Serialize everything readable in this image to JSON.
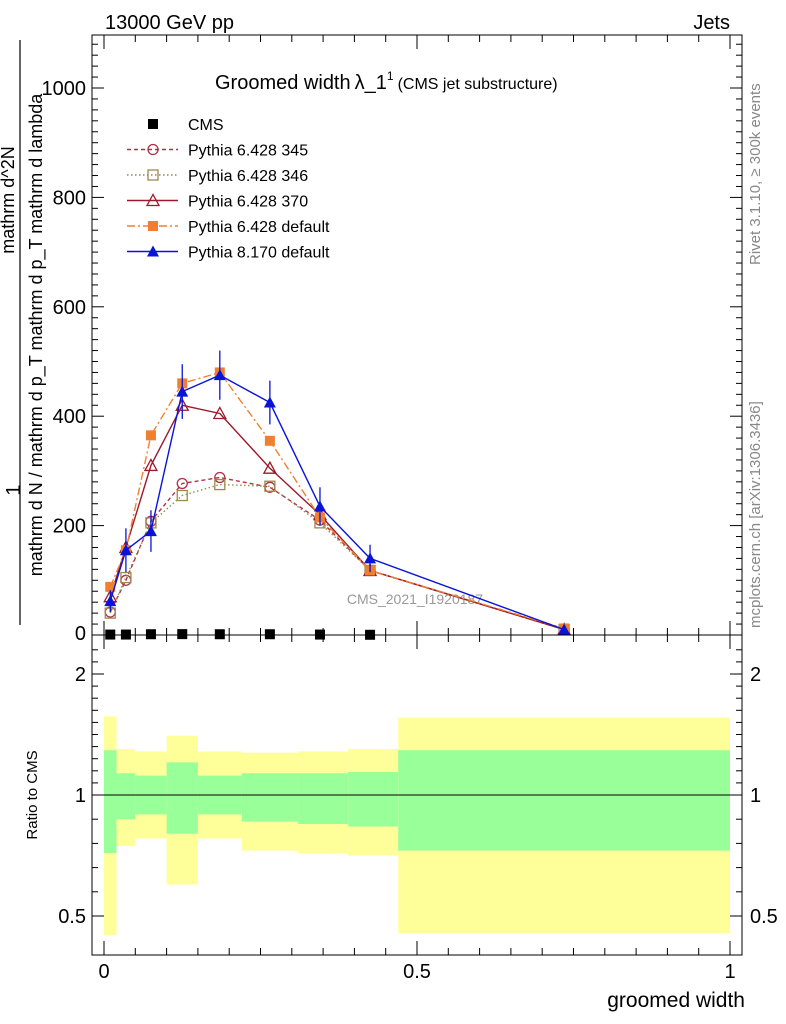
{
  "header": {
    "energy_label": "13000 GeV pp",
    "process_label": "Jets"
  },
  "side_labels": {
    "rivet": "Rivet 3.1.10, ≥ 300k events",
    "site": "mcplots.cern.ch [arXiv:1306.3436]"
  },
  "chart_data": [
    {
      "type": "line",
      "title_main": "Groomed width",
      "title_lambda": "λ_1",
      "title_sup": "1",
      "title_sub": "(CMS jet substructure)",
      "watermark": "CMS_2021_I1920187",
      "ylabel_num": "1",
      "ylabel_den": "mathrm d N / mathrm d p_T mathrm d p_T mathrm d lambda",
      "ylabel_frac_num": "mathrm d^2N",
      "ylabel_frac_den": "mathrm d p_T mathrm d lambda",
      "xlim": [
        -0.02,
        1.0
      ],
      "ylim": [
        0,
        1100
      ],
      "yticks": [
        200,
        400,
        600,
        800,
        1000
      ],
      "ytick_labels": [
        "200",
        "400",
        "600",
        "800",
        "1000"
      ],
      "ytick_zero": "0",
      "legend_position": "top-left",
      "series": [
        {
          "name": "CMS",
          "color": "#000000",
          "marker": "square-filled",
          "line": "none",
          "x": [
            0.01,
            0.035,
            0.075,
            0.125,
            0.185,
            0.265,
            0.345,
            0.425
          ],
          "y": [
            0.8,
            0.8,
            1.4,
            1.6,
            1.4,
            1.4,
            0.8,
            0.4
          ]
        },
        {
          "name": "Pythia 6.428 345",
          "color": "#b0304a",
          "marker": "circle-open",
          "line": "dashed",
          "x": [
            0.01,
            0.035,
            0.075,
            0.125,
            0.185,
            0.265,
            0.345,
            0.425,
            0.735
          ],
          "y": [
            42,
            100,
            208,
            277,
            288,
            270,
            210,
            118,
            10
          ]
        },
        {
          "name": "Pythia 6.428 346",
          "color": "#9c8a4a",
          "marker": "square-open",
          "line": "dotted",
          "x": [
            0.01,
            0.035,
            0.075,
            0.125,
            0.185,
            0.265,
            0.345,
            0.425,
            0.735
          ],
          "y": [
            40,
            105,
            205,
            255,
            275,
            272,
            205,
            118,
            10
          ]
        },
        {
          "name": "Pythia 6.428 370",
          "color": "#9c1a2a",
          "marker": "triangle-open",
          "line": "solid",
          "x": [
            0.01,
            0.035,
            0.075,
            0.125,
            0.185,
            0.265,
            0.345,
            0.425,
            0.735
          ],
          "y": [
            70,
            160,
            310,
            420,
            405,
            305,
            220,
            118,
            10
          ]
        },
        {
          "name": "Pythia 6.428 default",
          "color": "#f08030",
          "marker": "square-filled",
          "line": "dashdot",
          "x": [
            0.01,
            0.035,
            0.075,
            0.125,
            0.185,
            0.265,
            0.345,
            0.425,
            0.735
          ],
          "y": [
            88,
            155,
            365,
            460,
            480,
            355,
            215,
            118,
            12
          ]
        },
        {
          "name": "Pythia 8.170 default",
          "color": "#0a14d8",
          "marker": "triangle-filled",
          "line": "solid",
          "x": [
            0.01,
            0.035,
            0.075,
            0.125,
            0.185,
            0.265,
            0.345,
            0.425,
            0.735
          ],
          "y": [
            62,
            155,
            190,
            445,
            475,
            425,
            235,
            140,
            10
          ],
          "err": [
            20,
            40,
            38,
            50,
            45,
            40,
            35,
            25,
            5
          ]
        }
      ]
    },
    {
      "type": "area",
      "ylabel": "Ratio to CMS",
      "xlabel": "groomed width",
      "xlim": [
        -0.02,
        1.0
      ],
      "ylim": [
        0.4,
        2.3
      ],
      "yticks": [
        0.5,
        1,
        2
      ],
      "ytick_labels": [
        "0.5",
        "1",
        "2"
      ],
      "xticks": [
        0,
        0.5,
        1
      ],
      "xtick_labels": [
        "0",
        "0.5",
        "1"
      ],
      "reference_line": 1,
      "bins": [
        0,
        0.02,
        0.05,
        0.1,
        0.15,
        0.22,
        0.31,
        0.39,
        0.47,
        1.0
      ],
      "band_yellow_low": [
        0.42,
        0.79,
        0.82,
        0.63,
        0.82,
        0.77,
        0.76,
        0.75,
        0.43
      ],
      "band_yellow_high": [
        1.65,
        1.38,
        1.36,
        1.49,
        1.36,
        1.35,
        1.36,
        1.38,
        1.64
      ],
      "band_green_low": [
        0.76,
        0.9,
        0.92,
        0.84,
        0.92,
        0.89,
        0.88,
        0.87,
        0.77
      ],
      "band_green_high": [
        1.37,
        1.18,
        1.16,
        1.27,
        1.16,
        1.18,
        1.18,
        1.19,
        1.37
      ],
      "colors": {
        "yellow": "#ffff99",
        "green": "#99ff99"
      }
    }
  ]
}
